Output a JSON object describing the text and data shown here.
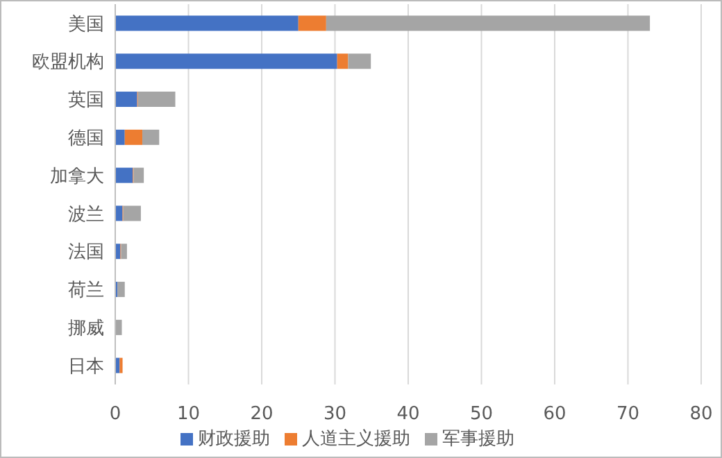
{
  "chart_data": {
    "type": "bar",
    "orientation": "horizontal",
    "stacked": true,
    "categories": [
      "美国",
      "欧盟机构",
      "英国",
      "德国",
      "加拿大",
      "波兰",
      "法国",
      "荷兰",
      "挪威",
      "日本"
    ],
    "series": [
      {
        "name": "财政援助",
        "color": "#4472c4",
        "values": [
          25.0,
          30.3,
          3.0,
          1.3,
          2.4,
          1.0,
          0.7,
          0.3,
          null,
          0.6
        ]
      },
      {
        "name": "人道主义援助",
        "color": "#ed7d31",
        "values": [
          3.8,
          1.5,
          0.1,
          2.4,
          0.1,
          0.1,
          0.1,
          0.0,
          0.0,
          0.4
        ]
      },
      {
        "name": "军事援助",
        "color": "#a5a5a5",
        "values": [
          44.2,
          3.1,
          5.1,
          2.3,
          1.4,
          2.4,
          0.8,
          1.0,
          0.9,
          0.0
        ]
      }
    ],
    "xlim": [
      0,
      80
    ],
    "xticks": [
      0,
      10,
      20,
      30,
      40,
      50,
      60,
      70,
      80
    ],
    "grid": "x",
    "legend": "bottom"
  }
}
